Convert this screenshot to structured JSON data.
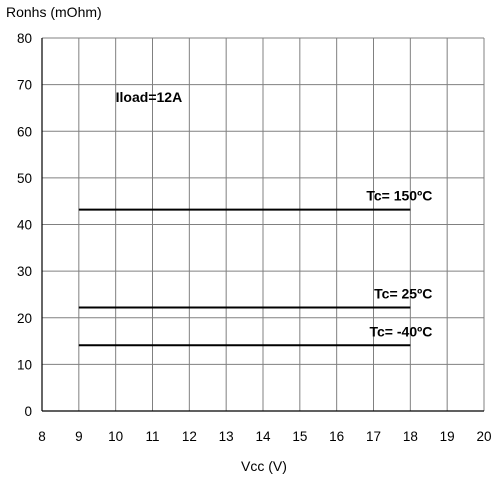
{
  "chart_data": {
    "type": "line",
    "ylabel": "Ronhs (mOhm)",
    "xlabel": "Vcc (V)",
    "xlim": [
      8,
      20
    ],
    "ylim": [
      0,
      80
    ],
    "x_ticks": [
      8,
      9,
      10,
      11,
      12,
      13,
      14,
      15,
      16,
      17,
      18,
      19,
      20
    ],
    "y_ticks": [
      0,
      10,
      20,
      30,
      40,
      50,
      60,
      70,
      80
    ],
    "grid": true,
    "series": [
      {
        "name": "Tc= 150ºC",
        "x": [
          9,
          18
        ],
        "y": [
          43.2,
          43.2
        ]
      },
      {
        "name": "Tc= 25ºC",
        "x": [
          9,
          18
        ],
        "y": [
          22.2,
          22.2
        ]
      },
      {
        "name": "Tc= -40ºC",
        "x": [
          9,
          18
        ],
        "y": [
          14.1,
          14.1
        ]
      }
    ],
    "annotations": [
      {
        "text": "Iload=12A"
      }
    ],
    "colors": {
      "line": "#000000",
      "grid": "#808080"
    }
  }
}
